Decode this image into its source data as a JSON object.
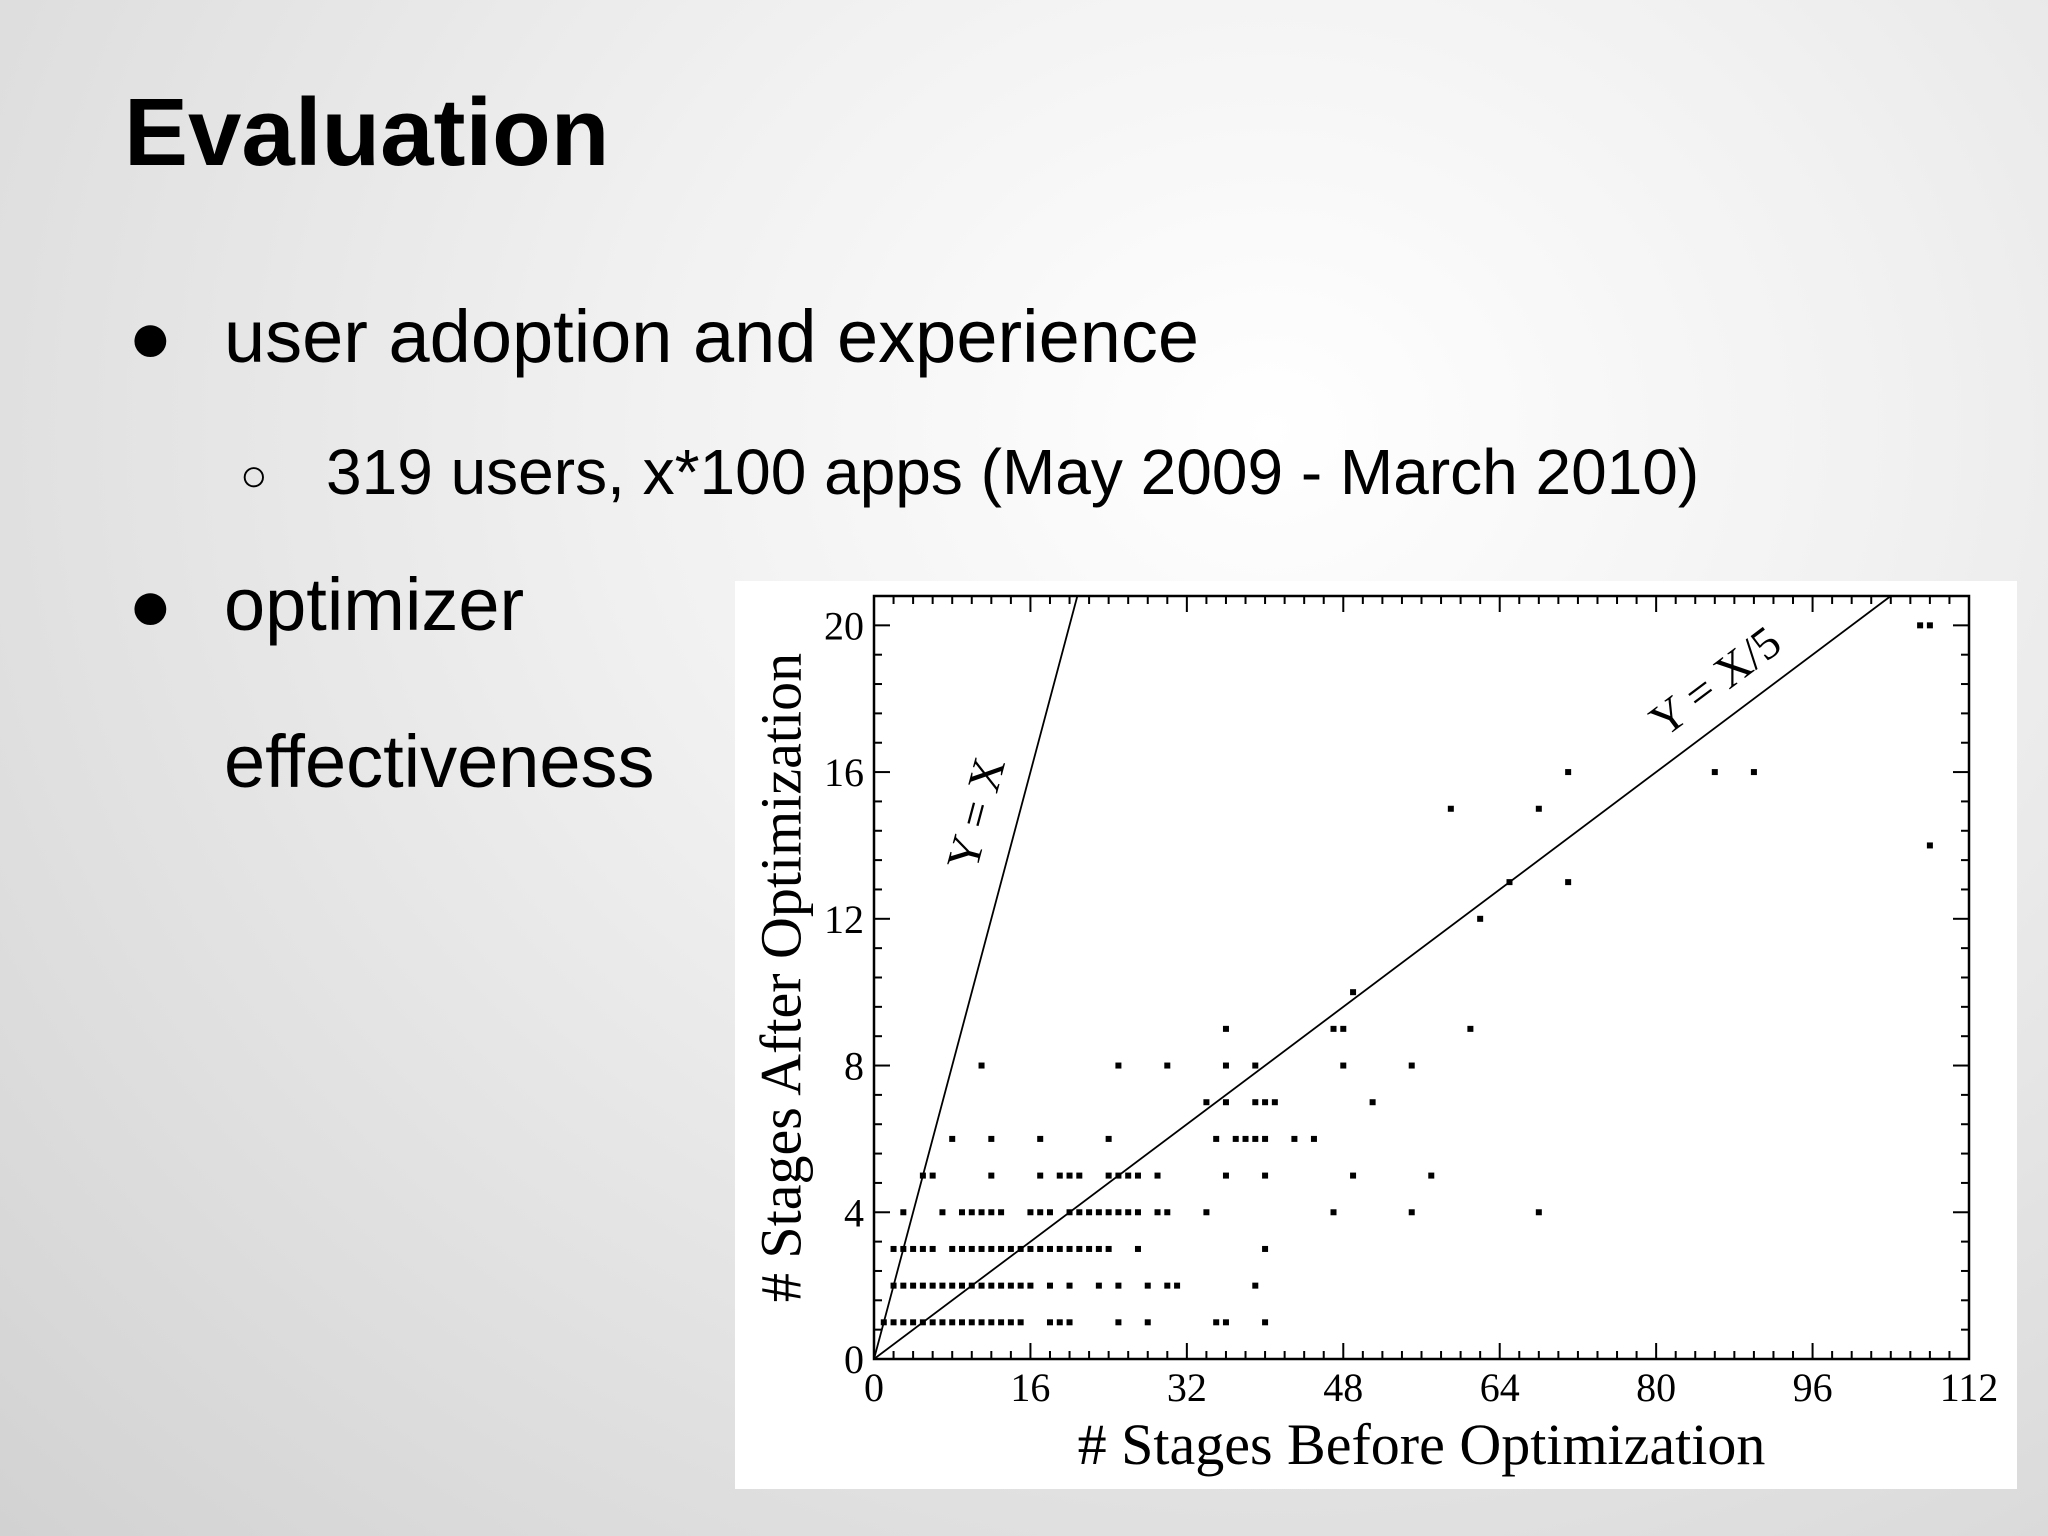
{
  "slide": {
    "title": "Evaluation",
    "bullets": [
      {
        "marker": "●",
        "text": "user adoption and experience"
      },
      {
        "marker": "●",
        "text": "optimizer",
        "text2": "effectiveness"
      }
    ],
    "sub_bullet": {
      "marker": "○",
      "text": "319 users, x*100 apps (May 2009 - March 2010)"
    }
  },
  "chart_data": {
    "type": "scatter",
    "xlabel": "# Stages Before Optimization",
    "ylabel": "# Stages After Optimization",
    "xlim": [
      0,
      112
    ],
    "ylim": [
      0,
      20.8
    ],
    "xticks": [
      0,
      16,
      32,
      48,
      64,
      80,
      96,
      112
    ],
    "yticks": [
      0,
      4,
      8,
      12,
      16,
      20
    ],
    "grid": false,
    "reference_lines": [
      {
        "label": "Y = X",
        "slope": 1
      },
      {
        "label": "Y = X/5",
        "slope": 0.2
      }
    ],
    "points": [
      [
        1,
        1
      ],
      [
        2,
        1
      ],
      [
        3,
        1
      ],
      [
        4,
        1
      ],
      [
        5,
        1
      ],
      [
        6,
        1
      ],
      [
        7,
        1
      ],
      [
        8,
        1
      ],
      [
        9,
        1
      ],
      [
        10,
        1
      ],
      [
        11,
        1
      ],
      [
        12,
        1
      ],
      [
        13,
        1
      ],
      [
        14,
        1
      ],
      [
        15,
        1
      ],
      [
        18,
        1
      ],
      [
        19,
        1
      ],
      [
        20,
        1
      ],
      [
        25,
        1
      ],
      [
        28,
        1
      ],
      [
        35,
        1
      ],
      [
        36,
        1
      ],
      [
        40,
        1
      ],
      [
        2,
        2
      ],
      [
        3,
        2
      ],
      [
        4,
        2
      ],
      [
        5,
        2
      ],
      [
        6,
        2
      ],
      [
        7,
        2
      ],
      [
        8,
        2
      ],
      [
        9,
        2
      ],
      [
        10,
        2
      ],
      [
        11,
        2
      ],
      [
        12,
        2
      ],
      [
        13,
        2
      ],
      [
        14,
        2
      ],
      [
        15,
        2
      ],
      [
        16,
        2
      ],
      [
        18,
        2
      ],
      [
        20,
        2
      ],
      [
        23,
        2
      ],
      [
        25,
        2
      ],
      [
        28,
        2
      ],
      [
        30,
        2
      ],
      [
        31,
        2
      ],
      [
        39,
        2
      ],
      [
        2,
        3
      ],
      [
        3,
        3
      ],
      [
        4,
        3
      ],
      [
        5,
        3
      ],
      [
        6,
        3
      ],
      [
        8,
        3
      ],
      [
        9,
        3
      ],
      [
        10,
        3
      ],
      [
        11,
        3
      ],
      [
        12,
        3
      ],
      [
        13,
        3
      ],
      [
        14,
        3
      ],
      [
        15,
        3
      ],
      [
        16,
        3
      ],
      [
        17,
        3
      ],
      [
        18,
        3
      ],
      [
        19,
        3
      ],
      [
        20,
        3
      ],
      [
        21,
        3
      ],
      [
        22,
        3
      ],
      [
        23,
        3
      ],
      [
        24,
        3
      ],
      [
        27,
        3
      ],
      [
        40,
        3
      ],
      [
        3,
        4
      ],
      [
        7,
        4
      ],
      [
        9,
        4
      ],
      [
        10,
        4
      ],
      [
        11,
        4
      ],
      [
        12,
        4
      ],
      [
        13,
        4
      ],
      [
        16,
        4
      ],
      [
        17,
        4
      ],
      [
        18,
        4
      ],
      [
        20,
        4
      ],
      [
        21,
        4
      ],
      [
        22,
        4
      ],
      [
        23,
        4
      ],
      [
        24,
        4
      ],
      [
        25,
        4
      ],
      [
        26,
        4
      ],
      [
        27,
        4
      ],
      [
        29,
        4
      ],
      [
        30,
        4
      ],
      [
        34,
        4
      ],
      [
        47,
        4
      ],
      [
        55,
        4
      ],
      [
        68,
        4
      ],
      [
        5,
        5
      ],
      [
        6,
        5
      ],
      [
        12,
        5
      ],
      [
        17,
        5
      ],
      [
        19,
        5
      ],
      [
        20,
        5
      ],
      [
        21,
        5
      ],
      [
        24,
        5
      ],
      [
        25,
        5
      ],
      [
        26,
        5
      ],
      [
        27,
        5
      ],
      [
        29,
        5
      ],
      [
        36,
        5
      ],
      [
        40,
        5
      ],
      [
        49,
        5
      ],
      [
        57,
        5
      ],
      [
        8,
        6
      ],
      [
        12,
        6
      ],
      [
        17,
        6
      ],
      [
        24,
        6
      ],
      [
        35,
        6
      ],
      [
        37,
        6
      ],
      [
        38,
        6
      ],
      [
        39,
        6
      ],
      [
        40,
        6
      ],
      [
        43,
        6
      ],
      [
        45,
        6
      ],
      [
        34,
        7
      ],
      [
        36,
        7
      ],
      [
        39,
        7
      ],
      [
        40,
        7
      ],
      [
        41,
        7
      ],
      [
        51,
        7
      ],
      [
        11,
        8
      ],
      [
        25,
        8
      ],
      [
        30,
        8
      ],
      [
        36,
        8
      ],
      [
        39,
        8
      ],
      [
        48,
        8
      ],
      [
        55,
        8
      ],
      [
        36,
        9
      ],
      [
        47,
        9
      ],
      [
        48,
        9
      ],
      [
        61,
        9
      ],
      [
        49,
        10
      ],
      [
        62,
        12
      ],
      [
        65,
        13
      ],
      [
        71,
        13
      ],
      [
        59,
        15
      ],
      [
        68,
        15
      ],
      [
        71,
        16
      ],
      [
        86,
        16
      ],
      [
        90,
        16
      ],
      [
        107,
        20
      ],
      [
        108,
        20
      ],
      [
        108,
        14
      ]
    ]
  }
}
